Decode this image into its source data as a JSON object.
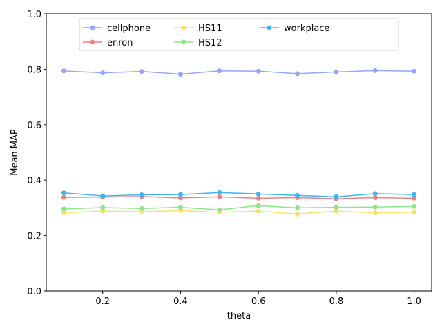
{
  "chart_data": {
    "type": "line",
    "xlabel": "theta",
    "ylabel": "Mean MAP",
    "ylim": [
      0.0,
      1.0
    ],
    "xlim": [
      0.055,
      1.045
    ],
    "x": [
      0.1,
      0.2,
      0.3,
      0.4,
      0.5,
      0.6,
      0.7,
      0.8,
      0.9,
      1.0
    ],
    "x_ticks": [
      0.2,
      0.4,
      0.6,
      0.8,
      1.0
    ],
    "x_tick_labels": [
      "0.2",
      "0.4",
      "0.6",
      "0.8",
      "1.0"
    ],
    "y_ticks": [
      0.0,
      0.2,
      0.4,
      0.6,
      0.8,
      1.0
    ],
    "y_tick_labels": [
      "0.0",
      "0.2",
      "0.4",
      "0.6",
      "0.8",
      "1.0"
    ],
    "grid": false,
    "legend_position": "top-center",
    "series": [
      {
        "name": "cellphone",
        "color": "#8fa8f8",
        "values": [
          0.794,
          0.787,
          0.792,
          0.782,
          0.794,
          0.793,
          0.784,
          0.79,
          0.795,
          0.793
        ]
      },
      {
        "name": "enron",
        "color": "#f08080",
        "values": [
          0.338,
          0.339,
          0.341,
          0.336,
          0.34,
          0.335,
          0.337,
          0.333,
          0.337,
          0.335
        ]
      },
      {
        "name": "HS11",
        "color": "#f5e26a",
        "values": [
          0.282,
          0.288,
          0.286,
          0.29,
          0.284,
          0.288,
          0.278,
          0.288,
          0.282,
          0.284
        ]
      },
      {
        "name": "HS12",
        "color": "#8de58a",
        "values": [
          0.296,
          0.301,
          0.298,
          0.302,
          0.293,
          0.308,
          0.3,
          0.302,
          0.303,
          0.305
        ]
      },
      {
        "name": "workplace",
        "color": "#43b3f0",
        "values": [
          0.354,
          0.343,
          0.347,
          0.348,
          0.355,
          0.35,
          0.345,
          0.34,
          0.351,
          0.348
        ]
      }
    ]
  }
}
